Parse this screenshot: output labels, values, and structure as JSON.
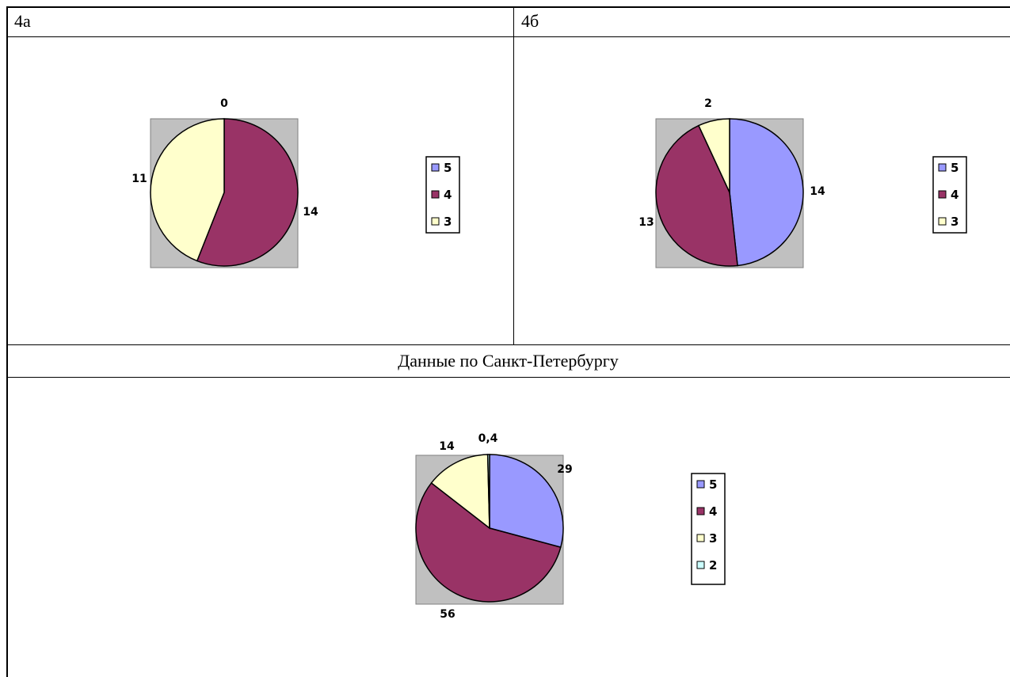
{
  "table": {
    "header_left": "4а",
    "header_right": "4б",
    "section_title": "Данные по Санкт-Петербургу"
  },
  "colors": {
    "grade_5": "#9999FF",
    "grade_4": "#993366",
    "grade_3": "#FFFFCC",
    "grade_2": "#CCFFFF",
    "plot_bg": "#C0C0C0"
  },
  "chart_data": [
    {
      "type": "pie",
      "categories": [
        "5",
        "4",
        "3"
      ],
      "values": [
        0,
        14,
        11
      ],
      "data_labels": [
        "0",
        "14",
        "11"
      ],
      "legend": [
        "5",
        "4",
        "3"
      ],
      "legend_position": "right"
    },
    {
      "type": "pie",
      "categories": [
        "5",
        "4",
        "3"
      ],
      "values": [
        14,
        13,
        2
      ],
      "data_labels": [
        "14",
        "13",
        "2"
      ],
      "legend": [
        "5",
        "4",
        "3"
      ],
      "legend_position": "right"
    },
    {
      "type": "pie",
      "categories": [
        "5",
        "4",
        "3",
        "2"
      ],
      "values": [
        29,
        56,
        14,
        0.4
      ],
      "data_labels": [
        "29",
        "56",
        "14",
        "0,4"
      ],
      "legend": [
        "5",
        "4",
        "3",
        "2"
      ],
      "legend_position": "right"
    }
  ]
}
